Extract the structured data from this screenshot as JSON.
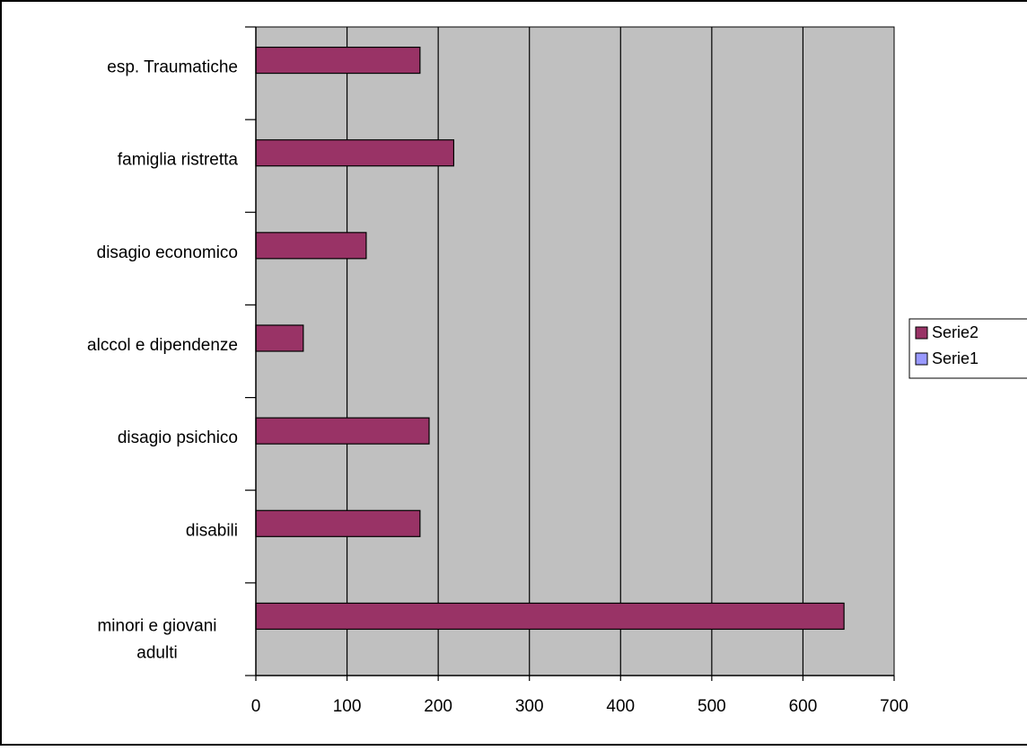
{
  "chart_data": {
    "type": "bar",
    "orientation": "horizontal",
    "categories": [
      "minori e giovani adulti",
      "disabili",
      "disagio psichico",
      "alccol e dipendenze",
      "disagio economico",
      "famiglia ristretta",
      "esp. Traumatiche"
    ],
    "category_label_lines": [
      [
        "minori e giovani",
        "adulti"
      ],
      [
        "disabili"
      ],
      [
        "disagio psichico"
      ],
      [
        "alccol e dipendenze"
      ],
      [
        "disagio economico"
      ],
      [
        "famiglia ristretta"
      ],
      [
        "esp. Traumatiche"
      ]
    ],
    "series": [
      {
        "name": "Serie2",
        "values": [
          645,
          180,
          190,
          52,
          121,
          217,
          180
        ],
        "color": "#993366"
      },
      {
        "name": "Serie1",
        "values": [
          0,
          0,
          0,
          0,
          0,
          0,
          0
        ],
        "color": "#9999ff"
      }
    ],
    "xlim": [
      0,
      700
    ],
    "xticks": [
      "0",
      "100",
      "200",
      "300",
      "400",
      "500",
      "600",
      "700"
    ],
    "title": "",
    "xlabel": "",
    "ylabel": "",
    "grid": "vertical",
    "plot_background": "#c0c0c0",
    "legend_placement": "right",
    "legend": [
      "Serie2",
      "Serie1"
    ]
  }
}
